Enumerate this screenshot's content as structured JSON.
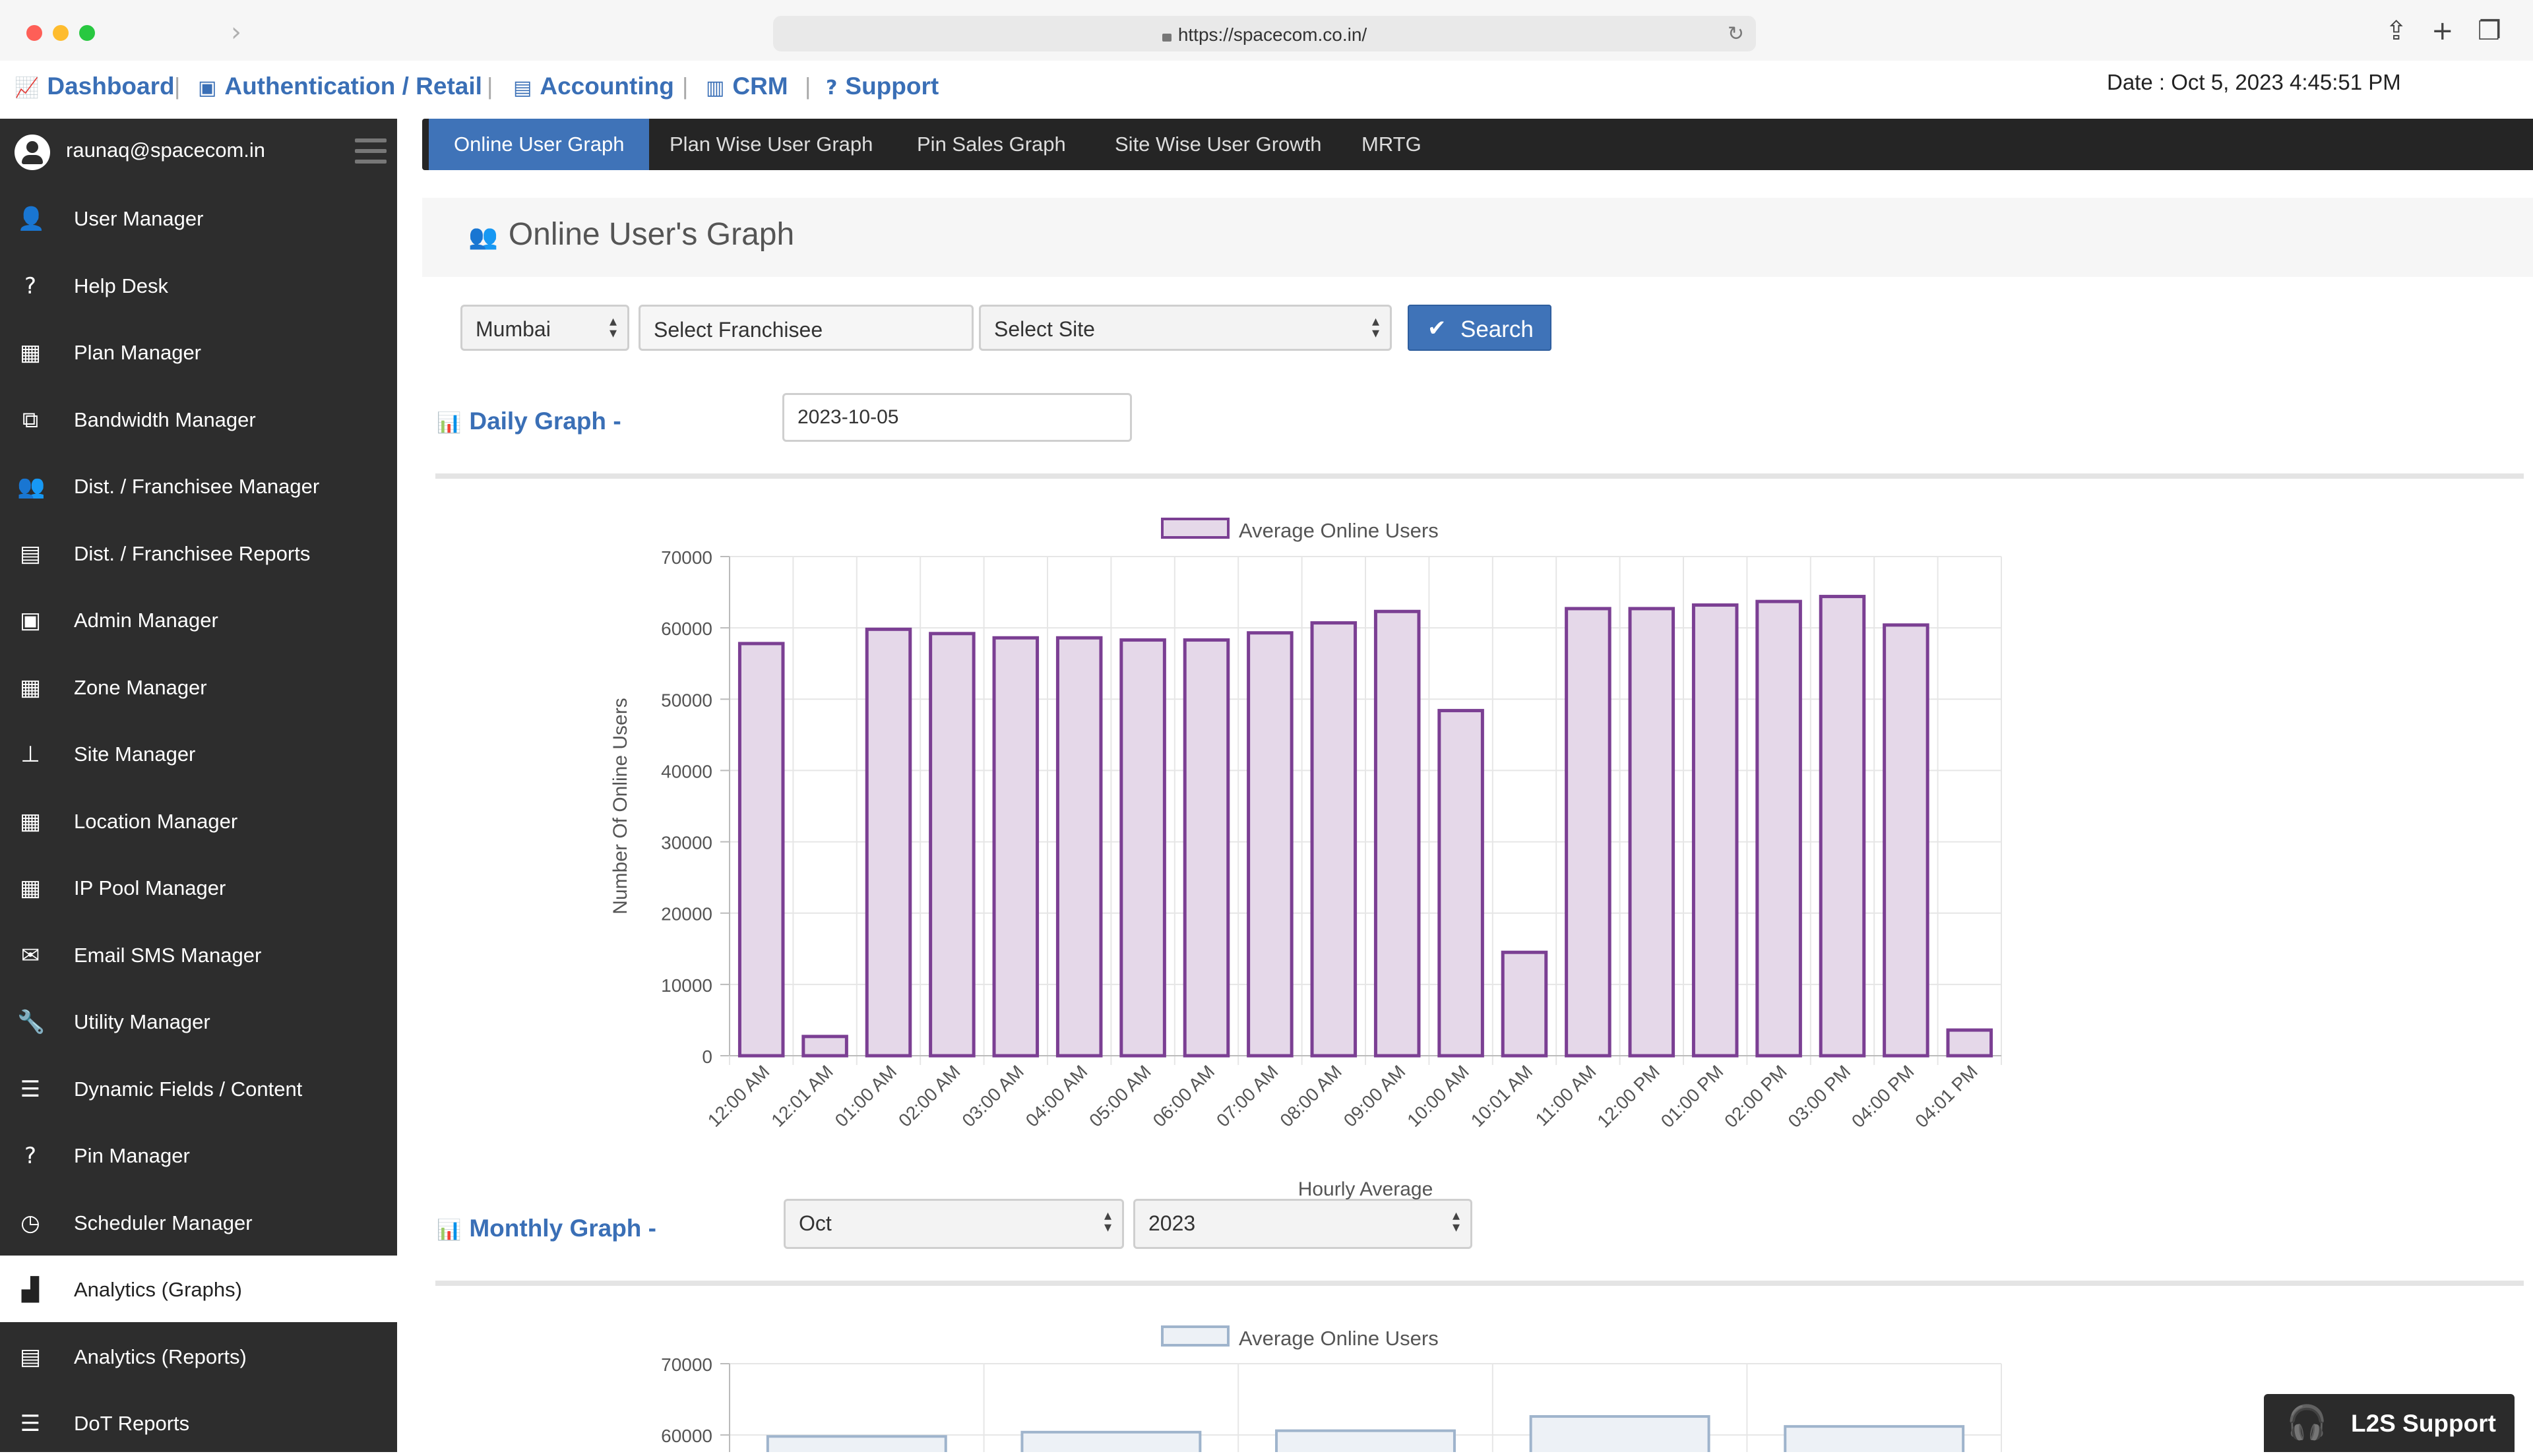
{
  "browser": {
    "url": "https://spacecom.co.in/"
  },
  "topmenu": {
    "items": [
      {
        "label": "Dashboard",
        "icon": "line-chart-icon"
      },
      {
        "label": "Authentication / Retail",
        "icon": "id-card-icon"
      },
      {
        "label": "Accounting",
        "icon": "ledger-icon"
      },
      {
        "label": "CRM",
        "icon": "money-icon"
      },
      {
        "label": "Support",
        "icon": "question-icon"
      }
    ],
    "date": "Date : Oct 5, 2023 4:45:51 PM"
  },
  "sidebar": {
    "user_email": "raunaq@spacecom.in",
    "items": [
      {
        "label": "User Manager",
        "icon": "user-icon"
      },
      {
        "label": "Help Desk",
        "icon": "question-icon"
      },
      {
        "label": "Plan Manager",
        "icon": "building-icon"
      },
      {
        "label": "Bandwidth Manager",
        "icon": "network-icon"
      },
      {
        "label": "Dist. / Franchisee Manager",
        "icon": "users-icon"
      },
      {
        "label": "Dist. / Franchisee Reports",
        "icon": "report-icon"
      },
      {
        "label": "Admin Manager",
        "icon": "admin-icon"
      },
      {
        "label": "Zone Manager",
        "icon": "building-icon"
      },
      {
        "label": "Site Manager",
        "icon": "sitemap-icon"
      },
      {
        "label": "Location Manager",
        "icon": "building-icon"
      },
      {
        "label": "IP Pool Manager",
        "icon": "building-icon"
      },
      {
        "label": "Email SMS Manager",
        "icon": "envelope-icon"
      },
      {
        "label": "Utility Manager",
        "icon": "wrench-icon"
      },
      {
        "label": "Dynamic Fields / Content",
        "icon": "list-icon"
      },
      {
        "label": "Pin Manager",
        "icon": "question-icon"
      },
      {
        "label": "Scheduler Manager",
        "icon": "clock-icon"
      },
      {
        "label": "Analytics (Graphs)",
        "icon": "bar-chart-icon",
        "active": true
      },
      {
        "label": "Analytics (Reports)",
        "icon": "document-icon"
      },
      {
        "label": "DoT Reports",
        "icon": "list-icon"
      }
    ]
  },
  "tabs": [
    {
      "label": "Online User Graph",
      "active": true
    },
    {
      "label": "Plan Wise User Graph"
    },
    {
      "label": "Pin Sales Graph"
    },
    {
      "label": "Site Wise User Growth"
    },
    {
      "label": "MRTG"
    }
  ],
  "panel": {
    "title": "Online User's Graph"
  },
  "filters": {
    "zone": "Mumbai",
    "franchisee": "Select Franchisee",
    "site": "Select Site",
    "search_label": "Search"
  },
  "daily": {
    "label": "Daily Graph -",
    "date": "2023-10-05"
  },
  "monthly": {
    "label": "Monthly Graph -",
    "month": "Oct",
    "year": "2023"
  },
  "support_widget": {
    "label": "L2S Support"
  },
  "colors": {
    "accent": "#3f73b8",
    "bar_fill": "#e5d8e9",
    "bar_stroke": "#7b3f93",
    "monthly_fill": "#edf1f6",
    "monthly_stroke": "#9fb4cc"
  },
  "chart_data": [
    {
      "type": "bar",
      "legend": "Average Online Users",
      "legend_position": "top-center",
      "xlabel": "Hourly Average",
      "ylabel": "Number Of Online Users",
      "ylim": [
        0,
        70000
      ],
      "yticks": [
        0,
        10000,
        20000,
        30000,
        40000,
        50000,
        60000,
        70000
      ],
      "grid": true,
      "categories": [
        "12:00 AM",
        "12:01 AM",
        "01:00 AM",
        "02:00 AM",
        "03:00 AM",
        "04:00 AM",
        "05:00 AM",
        "06:00 AM",
        "07:00 AM",
        "08:00 AM",
        "09:00 AM",
        "10:00 AM",
        "10:01 AM",
        "11:00 AM",
        "12:00 PM",
        "01:00 PM",
        "02:00 PM",
        "03:00 PM",
        "04:00 PM",
        "04:01 PM"
      ],
      "series": [
        {
          "name": "Average Online Users",
          "values": [
            57800,
            2700,
            59800,
            59200,
            58600,
            58600,
            58300,
            58300,
            59300,
            60700,
            62300,
            48400,
            14500,
            62700,
            62700,
            63200,
            63700,
            64400,
            60400,
            3600
          ]
        }
      ]
    },
    {
      "type": "bar",
      "legend": "Average Online Users",
      "legend_position": "top-center",
      "ylim": [
        0,
        70000
      ],
      "yticks": [
        60000,
        70000
      ],
      "grid": true,
      "categories_count": 5,
      "series": [
        {
          "name": "Average Online Users",
          "values": [
            59800,
            60400,
            60600,
            62600,
            61200
          ]
        }
      ]
    }
  ]
}
